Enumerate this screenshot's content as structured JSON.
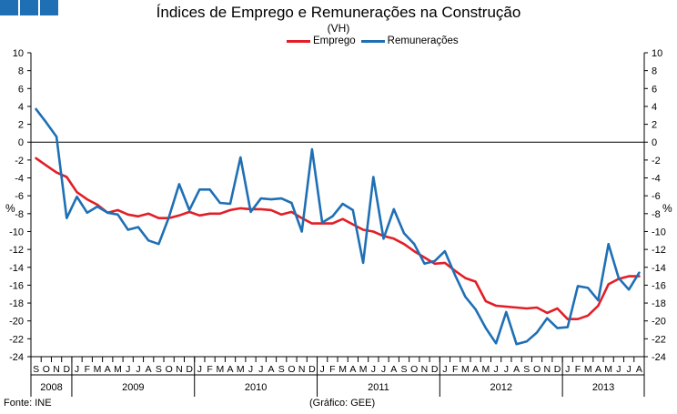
{
  "header": {
    "title": "Índices de Emprego e Remunerações na Construção",
    "subtitle": "(VH)"
  },
  "footer": {
    "source": "Fonte: INE",
    "credit": "(Gráfico: GEE)"
  },
  "colors": {
    "logo": "#1f6fb5",
    "emprego": "#e21e26",
    "remuneracoes": "#1f6fb5"
  },
  "chart_data": {
    "type": "line",
    "ylabel": "%",
    "ylabel_right": "%",
    "ylim": [
      -24,
      10
    ],
    "yticks": [
      10,
      8,
      6,
      4,
      2,
      0,
      -2,
      -4,
      -6,
      -8,
      -10,
      -12,
      -14,
      -16,
      -18,
      -20,
      -22,
      -24
    ],
    "grid": false,
    "legend_position": "top-center",
    "month_labels": [
      "S",
      "O",
      "N",
      "D",
      "J",
      "F",
      "M",
      "A",
      "M",
      "J",
      "J",
      "A",
      "S",
      "O",
      "N",
      "D",
      "J",
      "F",
      "M",
      "A",
      "M",
      "J",
      "J",
      "A",
      "S",
      "O",
      "N",
      "D",
      "J",
      "F",
      "M",
      "A",
      "M",
      "J",
      "J",
      "A",
      "S",
      "O",
      "N",
      "D",
      "J",
      "F",
      "M",
      "A",
      "M",
      "J",
      "J",
      "A",
      "S",
      "O",
      "N",
      "D",
      "J",
      "F",
      "M",
      "A",
      "M",
      "J",
      "J",
      "A"
    ],
    "years": [
      {
        "label": "2008",
        "start": 0,
        "count": 4
      },
      {
        "label": "2009",
        "start": 4,
        "count": 12
      },
      {
        "label": "2010",
        "start": 16,
        "count": 12
      },
      {
        "label": "2011",
        "start": 28,
        "count": 12
      },
      {
        "label": "2012",
        "start": 40,
        "count": 12
      },
      {
        "label": "2013",
        "start": 52,
        "count": 8
      }
    ],
    "series": [
      {
        "name": "Emprego",
        "color": "#e21e26",
        "values": [
          -1.8,
          -2.6,
          -3.4,
          -3.9,
          -5.6,
          -6.4,
          -7.0,
          -7.9,
          -7.6,
          -8.1,
          -8.3,
          -8.0,
          -8.5,
          -8.5,
          -8.2,
          -7.8,
          -8.2,
          -8.0,
          -8.0,
          -7.6,
          -7.4,
          -7.5,
          -7.5,
          -7.6,
          -8.1,
          -7.8,
          -8.5,
          -9.1,
          -9.1,
          -9.1,
          -8.6,
          -9.2,
          -9.8,
          -10.0,
          -10.5,
          -10.8,
          -11.4,
          -12.2,
          -12.9,
          -13.6,
          -13.5,
          -14.4,
          -15.2,
          -15.6,
          -17.8,
          -18.3,
          -18.4,
          -18.5,
          -18.6,
          -18.5,
          -19.1,
          -18.6,
          -19.8,
          -19.8,
          -19.4,
          -18.3,
          -15.9,
          -15.3,
          -15.0,
          -15.0
        ]
      },
      {
        "name": "Remunerações",
        "color": "#1f6fb5",
        "values": [
          3.7,
          2.2,
          0.6,
          -8.5,
          -6.1,
          -7.9,
          -7.2,
          -7.9,
          -8.1,
          -9.8,
          -9.5,
          -11.0,
          -11.4,
          -8.4,
          -4.7,
          -7.6,
          -5.3,
          -5.3,
          -6.8,
          -6.9,
          -1.7,
          -7.8,
          -6.3,
          -6.4,
          -6.3,
          -6.8,
          -10.0,
          -0.8,
          -9.0,
          -8.3,
          -6.9,
          -7.6,
          -13.5,
          -3.9,
          -10.8,
          -7.5,
          -10.2,
          -11.4,
          -13.6,
          -13.3,
          -12.2,
          -14.9,
          -17.3,
          -18.7,
          -20.8,
          -22.5,
          -19.0,
          -22.6,
          -22.3,
          -21.3,
          -19.7,
          -20.8,
          -20.7,
          -16.1,
          -16.3,
          -17.7,
          -11.4,
          -15.2,
          -16.5,
          -14.6
        ]
      }
    ]
  }
}
